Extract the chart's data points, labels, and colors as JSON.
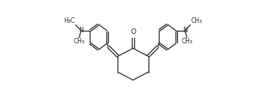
{
  "bg_color": "#ffffff",
  "line_color": "#2a2a2a",
  "line_width": 0.9,
  "font_size": 5.8,
  "fig_width": 3.35,
  "fig_height": 1.32,
  "dpi": 100,
  "xlim": [
    -1.05,
    1.05
  ],
  "ylim": [
    -0.52,
    0.58
  ]
}
